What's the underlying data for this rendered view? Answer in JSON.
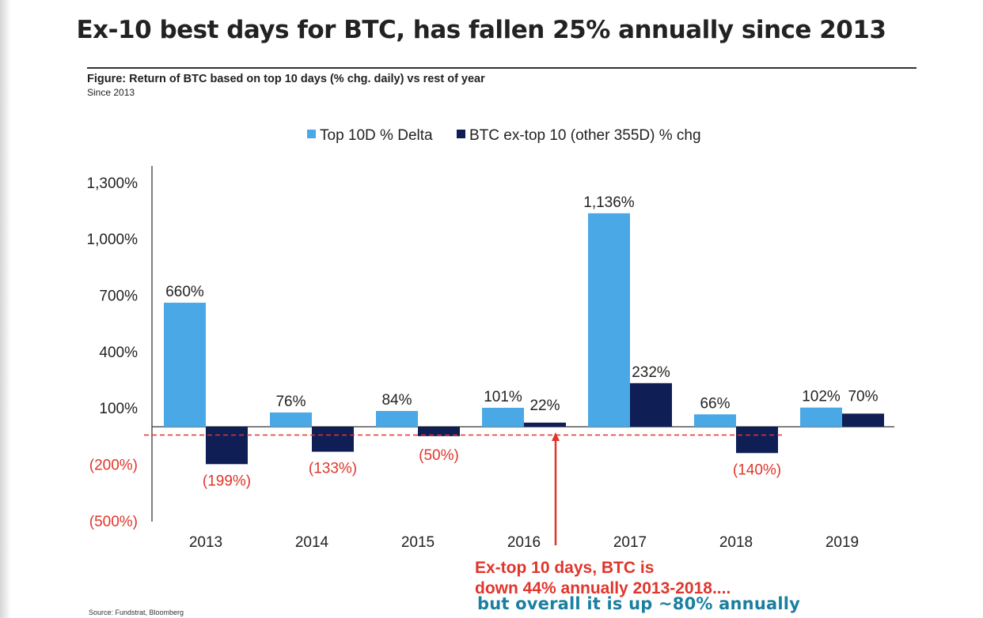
{
  "title": "Ex-10 best days for BTC, has fallen 25% annually since 2013",
  "figure": {
    "caption": "Figure: Return of BTC based on top 10 days (% chg. daily) vs rest of year",
    "subcaption": "Since 2013"
  },
  "source": "Source: Fundstrat, Bloomberg",
  "annotations": {
    "line1": "Ex-top 10 days, BTC is",
    "line2": "down 44% annually 2013-2018....",
    "line3": "but overall it is up ~80% annually"
  },
  "colors": {
    "series1": "#4aa8e6",
    "series2": "#0f1f55",
    "negative_label": "#e0352b",
    "dashed_line": "#e0352b"
  },
  "chart_data": {
    "type": "bar",
    "title": "Return of BTC based on top 10 days (% chg. daily) vs rest of year",
    "categories": [
      "2013",
      "2014",
      "2015",
      "2016",
      "2017",
      "2018",
      "2019"
    ],
    "series": [
      {
        "name": "Top 10D % Delta",
        "values": [
          660,
          76,
          84,
          101,
          1136,
          66,
          102
        ],
        "labels": [
          "660%",
          "76%",
          "84%",
          "101%",
          "1,136%",
          "66%",
          "102%"
        ]
      },
      {
        "name": "BTC ex-top 10 (other 355D) % chg",
        "values": [
          -199,
          -133,
          -50,
          22,
          232,
          -140,
          70
        ],
        "labels": [
          "(199%)",
          "(133%)",
          "(50%)",
          "22%",
          "232%",
          "(140%)",
          "70%"
        ]
      }
    ],
    "y_ticks": [
      1300,
      1000,
      700,
      400,
      100,
      -200,
      -500
    ],
    "y_tick_labels": [
      "1,300%",
      "1,000%",
      "700%",
      "400%",
      "100%",
      "(200%)",
      "(500%)"
    ],
    "ylim": [
      -500,
      1300
    ],
    "reference_line": -44,
    "legend_position": "top-center",
    "grid": false
  }
}
